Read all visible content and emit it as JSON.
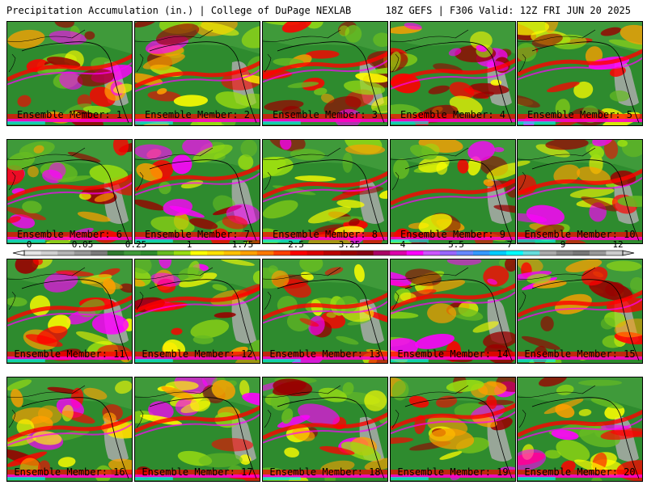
{
  "header": {
    "title_left": "Precipitation Accumulation (in.) | College of DuPage NEXLAB",
    "title_right": "18Z GEFS | F306 Valid: 12Z FRI JUN 20 2025"
  },
  "panels": [
    {
      "label": "Ensemble Member: 1"
    },
    {
      "label": "Ensemble Member: 2"
    },
    {
      "label": "Ensemble Member: 3"
    },
    {
      "label": "Ensemble Member: 4"
    },
    {
      "label": "Ensemble Member: 5"
    },
    {
      "label": "Ensemble Member: 6"
    },
    {
      "label": "Ensemble Member: 7"
    },
    {
      "label": "Ensemble Member: 8"
    },
    {
      "label": "Ensemble Member: 9"
    },
    {
      "label": "Ensemble Member: 10"
    },
    {
      "label": "Ensemble Member: 11"
    },
    {
      "label": "Ensemble Member: 12"
    },
    {
      "label": "Ensemble Member: 13"
    },
    {
      "label": "Ensemble Member: 14"
    },
    {
      "label": "Ensemble Member: 15"
    },
    {
      "label": "Ensemble Member: 16"
    },
    {
      "label": "Ensemble Member: 17"
    },
    {
      "label": "Ensemble Member: 18"
    },
    {
      "label": "Ensemble Member: 19"
    },
    {
      "label": "Ensemble Member: 20"
    }
  ],
  "legend": {
    "tick_labels": [
      "0",
      "0.05",
      "0.25",
      "1",
      "1.75",
      "2.5",
      "3.25",
      "4",
      "5.5",
      "7",
      "9",
      "12"
    ],
    "colors": [
      "#e6e6e6",
      "#d0d0d0",
      "#b4b4b4",
      "#999999",
      "#7a7a7a",
      "#2f7a2f",
      "#3f9a3a",
      "#2e8b2e",
      "#66bb22",
      "#99dd11",
      "#ffff00",
      "#ffe000",
      "#ffc000",
      "#ffa000",
      "#ff7800",
      "#ff4000",
      "#ff0000",
      "#dd0000",
      "#bb0000",
      "#990000",
      "#880011",
      "#aa0066",
      "#dd00aa",
      "#ff00ff",
      "#cc55ff",
      "#9966ff",
      "#6688ff",
      "#3399ff",
      "#00ccff",
      "#00ffff",
      "#66dddd",
      "#aaaaaa",
      "#888888",
      "#777777",
      "#999999",
      "#cccccc"
    ]
  },
  "map_colors": {
    "ocean_base": "#2e8b2e",
    "dry_green": "#3f9a3a",
    "light_green": "#66bb22",
    "yellow_green": "#99dd11",
    "yellow": "#ffff00",
    "orange": "#ffa000",
    "red": "#ff0000",
    "dark_red": "#990000",
    "magenta": "#ff00ff",
    "purple": "#9966ff",
    "cyan": "#00ffff",
    "gray": "#aaaaaa",
    "coastline": "#000000"
  }
}
